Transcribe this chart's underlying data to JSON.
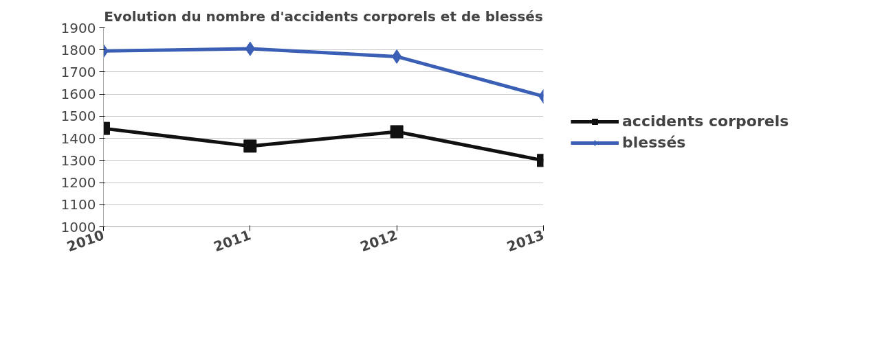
{
  "chart_data": {
    "type": "line",
    "title": "Evolution du nombre d'accidents corporels et de blessés",
    "categories": [
      "2010",
      "2011",
      "2012",
      "2013"
    ],
    "series": [
      {
        "name": "accidents corporels",
        "color": "#111111",
        "marker": "square",
        "values": [
          1445,
          1365,
          1430,
          1300
        ]
      },
      {
        "name": "blessés",
        "color": "#3a5fb5",
        "marker": "diamond",
        "values": [
          1795,
          1805,
          1770,
          1590
        ]
      }
    ],
    "ylim": [
      1000,
      1900
    ],
    "yticks": [
      1000,
      1100,
      1200,
      1300,
      1400,
      1500,
      1600,
      1700,
      1800,
      1900
    ],
    "grid": "y",
    "legend": "right",
    "line_style": "solid"
  }
}
